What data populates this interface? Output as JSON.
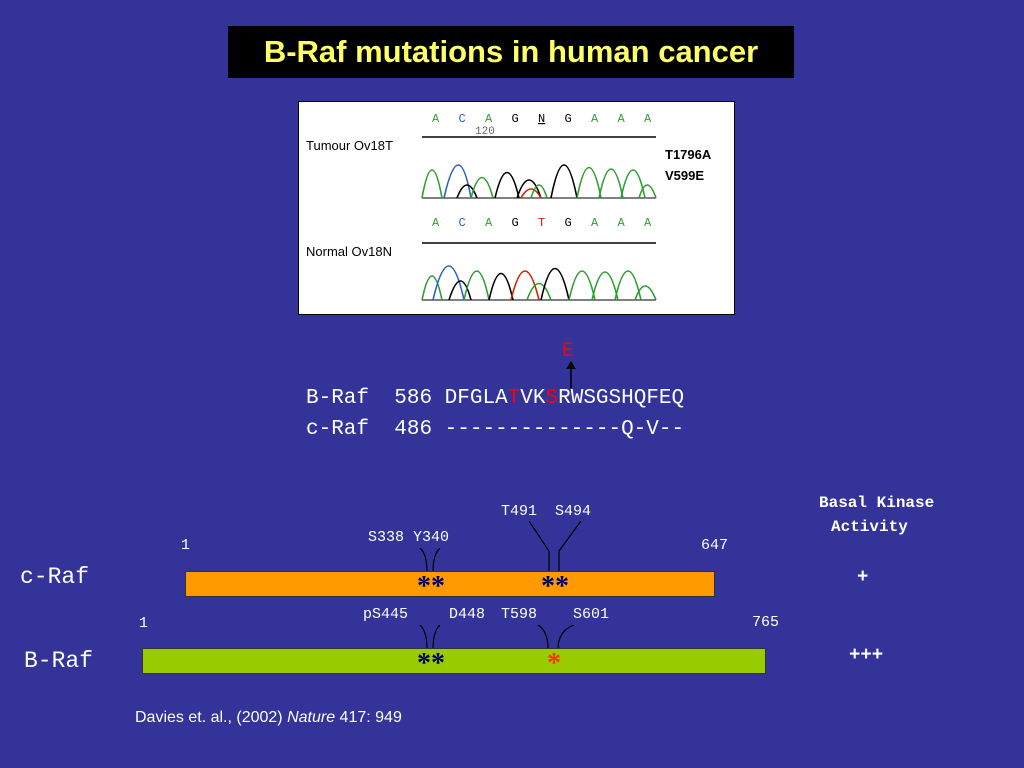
{
  "title": "B-Raf mutations in human cancer",
  "chromatogram": {
    "tumour_label": "Tumour Ov18T",
    "normal_label": "Normal Ov18N",
    "tumour_bases": [
      "A",
      "C",
      "A",
      "G",
      "N",
      "G",
      "A",
      "A",
      "A"
    ],
    "normal_bases": [
      "A",
      "C",
      "A",
      "G",
      "T",
      "G",
      "A",
      "A",
      "A"
    ],
    "position_label": "120",
    "mutation_label_1": "T1796A",
    "mutation_label_2": "V599E",
    "colors": {
      "A": "#2e9e2e",
      "C": "#2d5fc4",
      "G": "#000000",
      "T": "#cc2200",
      "N": "#000000"
    }
  },
  "sequence": {
    "substitution": "E",
    "braf": {
      "name": "B-Raf",
      "pos": "586",
      "seq_a": "DFGLA",
      "seq_t": "T",
      "seq_b": "VK",
      "seq_s": "S",
      "seq_c": "RWSGSHQFEQ"
    },
    "craf": {
      "name": "c-Raf",
      "pos": "486",
      "seq": "--------------Q-V--"
    }
  },
  "domains": {
    "basal_line1": "Basal Kinase",
    "basal_line2": "Activity",
    "craf": {
      "name": "c-Raf",
      "start": "1",
      "end": "647",
      "sites_left": "S338 Y340",
      "sites_right": "T491  S494",
      "stars_left": "**",
      "stars_right": "**",
      "activity": "+",
      "color": "#ff9900"
    },
    "braf": {
      "name": "B-Raf",
      "start": "1",
      "end": "765",
      "site_ps445": "pS445",
      "site_d448": "D448",
      "site_t598": "T598",
      "site_s601": "S601",
      "stars_left": "**",
      "stars_right": "*",
      "activity": "+++",
      "color": "#99cc00"
    }
  },
  "citation": {
    "authors": "Davies et. al., (2002) ",
    "journal": "Nature",
    "ref": " 417: 949"
  }
}
